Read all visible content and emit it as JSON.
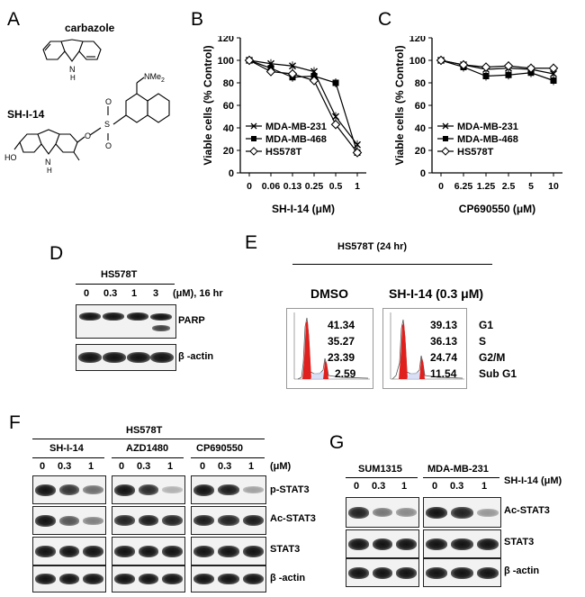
{
  "panels": {
    "A": {
      "letter": "A",
      "compound1": "carbazole",
      "compound2": "SH-I-14",
      "nh_label": "H",
      "n_label": "N",
      "nme2_label": "NMe",
      "nme2_sub": "2",
      "ho_label": "HO",
      "o_label": "O",
      "s_label": "S"
    },
    "B": {
      "letter": "B",
      "chart_data": {
        "type": "line",
        "title": "",
        "xlabel": "SH-I-14 (μM)",
        "ylabel": "Viable cells (% Control)",
        "ylim": [
          0,
          120
        ],
        "yticks": [
          "0",
          "20",
          "40",
          "60",
          "80",
          "100",
          "120"
        ],
        "categories": [
          "0",
          "0.06",
          "0.13",
          "0.25",
          "0.5",
          "1"
        ],
        "series": [
          {
            "name": "MDA-MB-231",
            "marker": "x",
            "values": [
              100,
              97,
              95,
              90,
              50,
              25
            ]
          },
          {
            "name": "MDA-MB-468",
            "marker": "square",
            "values": [
              100,
              93,
              85,
              86,
              80,
              18
            ]
          },
          {
            "name": "HS578T",
            "marker": "diamond",
            "values": [
              100,
              90,
              88,
              82,
              43,
              18
            ]
          }
        ],
        "legend": "bottom-left"
      }
    },
    "C": {
      "letter": "C",
      "chart_data": {
        "type": "line",
        "title": "",
        "xlabel": "CP690550 (μM)",
        "ylabel": "Viable cells (% Control)",
        "ylim": [
          0,
          120
        ],
        "yticks": [
          "0",
          "20",
          "40",
          "60",
          "80",
          "100",
          "120"
        ],
        "categories": [
          "0",
          "6.25",
          "1.25",
          "2.5",
          "5",
          "10"
        ],
        "series": [
          {
            "name": "MDA-MB-231",
            "marker": "x",
            "values": [
              100,
              96,
              92,
              93,
              92,
              88
            ]
          },
          {
            "name": "MDA-MB-468",
            "marker": "square",
            "values": [
              100,
              94,
              86,
              87,
              89,
              82
            ]
          },
          {
            "name": "HS578T",
            "marker": "diamond",
            "values": [
              100,
              96,
              94,
              95,
              93,
              93
            ]
          }
        ],
        "legend": "bottom-left"
      }
    },
    "D": {
      "letter": "D",
      "cell_line": "HS578T",
      "doses": [
        "0",
        "0.3",
        "1",
        "3"
      ],
      "unit": "(μM), 16 hr",
      "rows": [
        "PARP",
        "β -actin"
      ]
    },
    "E": {
      "letter": "E",
      "header": "HS578T (24 hr)",
      "cond1": "DMSO",
      "cond2": "SH-I-14 (0.3 μM)",
      "dmso_values": [
        "41.34",
        "35.27",
        "23.39",
        "2.59"
      ],
      "sh_values": [
        "39.13",
        "36.13",
        "24.74",
        "11.54"
      ],
      "phases": [
        "G1",
        "S",
        "G2/M",
        "Sub G1"
      ]
    },
    "F": {
      "letter": "F",
      "cell_line": "HS578T",
      "drugs": [
        "SH-I-14",
        "AZD1480",
        "CP690550"
      ],
      "doses": [
        "0",
        "0.3",
        "1"
      ],
      "unit": "(μM)",
      "rows": [
        "p-STAT3",
        "Ac-STAT3",
        "STAT3",
        "β -actin"
      ]
    },
    "G": {
      "letter": "G",
      "cell_lines": [
        "SUM1315",
        "MDA-MB-231"
      ],
      "doses": [
        "0",
        "0.3",
        "1"
      ],
      "treatment": "SH-I-14 (μM)",
      "rows": [
        "Ac-STAT3",
        "STAT3",
        "β -actin"
      ]
    }
  }
}
